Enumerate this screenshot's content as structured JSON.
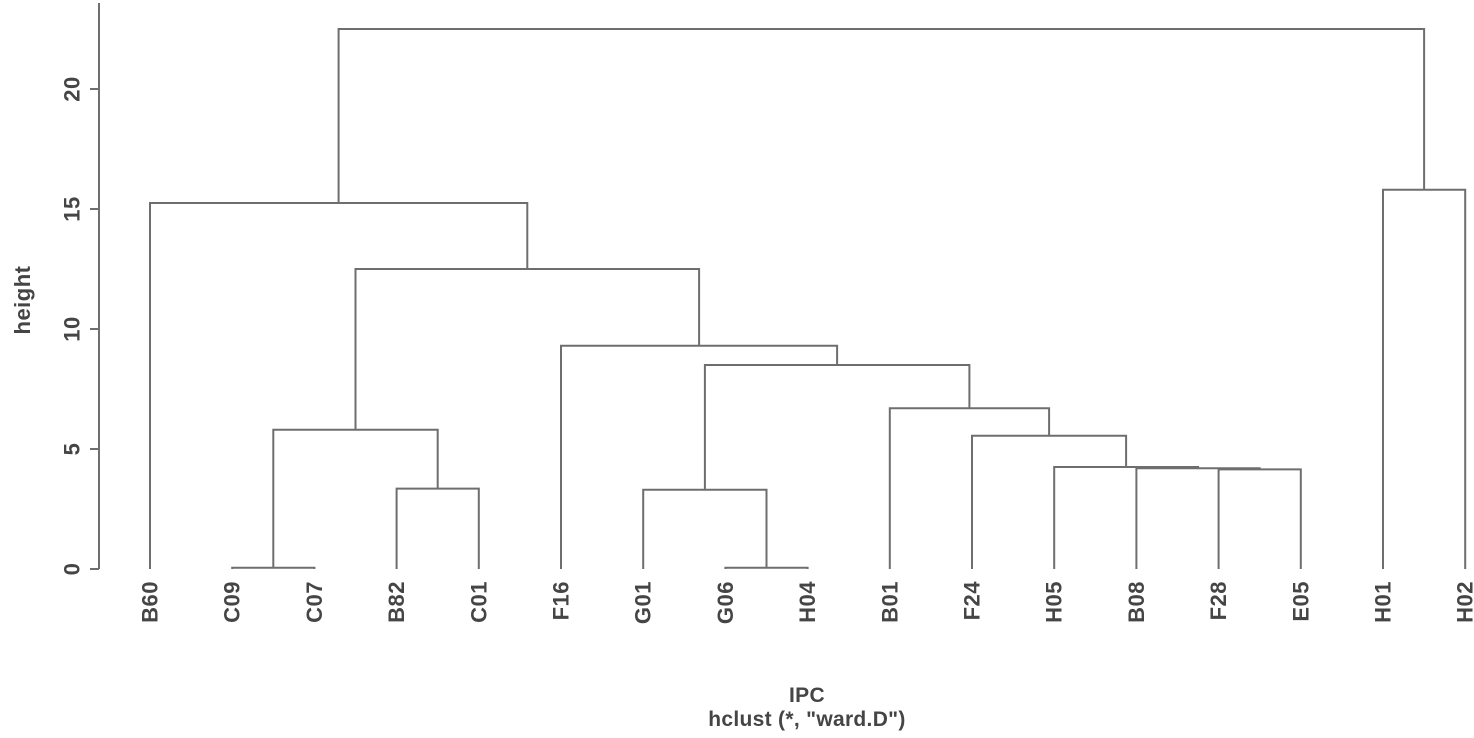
{
  "figure": {
    "background": "#ffffff",
    "line_color": "#6e6e6e",
    "text_color": "#454545"
  },
  "chart_data": {
    "type": "dendrogram",
    "title": "",
    "xlabel": "IPC",
    "sub": "hclust (*, \"ward.D\")",
    "ylabel": "height",
    "y_ticks": [
      0,
      5,
      10,
      15,
      20
    ],
    "ylim": [
      0,
      22.5
    ],
    "grid": false,
    "leaf_order": [
      "B60",
      "C09",
      "C07",
      "B82",
      "C01",
      "F16",
      "G01",
      "G06",
      "H04",
      "B01",
      "F24",
      "H05",
      "B08",
      "F28",
      "E05",
      "H01",
      "H02"
    ],
    "tree": {
      "height": 22.5,
      "children": [
        {
          "height": 15.25,
          "children": [
            {
              "leaf": "B60"
            },
            {
              "height": 12.5,
              "children": [
                {
                  "height": 5.8,
                  "children": [
                    {
                      "height": 0.05,
                      "children": [
                        {
                          "leaf": "C09"
                        },
                        {
                          "leaf": "C07"
                        }
                      ]
                    },
                    {
                      "height": 3.35,
                      "children": [
                        {
                          "leaf": "B82"
                        },
                        {
                          "leaf": "C01"
                        }
                      ]
                    }
                  ]
                },
                {
                  "height": 9.3,
                  "children": [
                    {
                      "leaf": "F16"
                    },
                    {
                      "height": 8.5,
                      "children": [
                        {
                          "height": 3.3,
                          "children": [
                            {
                              "leaf": "G01"
                            },
                            {
                              "height": 0.05,
                              "children": [
                                {
                                  "leaf": "G06"
                                },
                                {
                                  "leaf": "H04"
                                }
                              ]
                            }
                          ]
                        },
                        {
                          "height": 6.7,
                          "children": [
                            {
                              "leaf": "B01"
                            },
                            {
                              "height": 5.55,
                              "children": [
                                {
                                  "leaf": "F24"
                                },
                                {
                                  "height": 4.25,
                                  "children": [
                                    {
                                      "leaf": "H05"
                                    },
                                    {
                                      "height": 4.2,
                                      "children": [
                                        {
                                          "leaf": "B08"
                                        },
                                        {
                                          "height": 4.15,
                                          "children": [
                                            {
                                              "leaf": "F28"
                                            },
                                            {
                                              "leaf": "E05"
                                            }
                                          ]
                                        }
                                      ]
                                    }
                                  ]
                                }
                              ]
                            }
                          ]
                        }
                      ]
                    }
                  ]
                }
              ]
            }
          ]
        },
        {
          "height": 15.8,
          "children": [
            {
              "leaf": "H01"
            },
            {
              "leaf": "H02"
            }
          ]
        }
      ]
    }
  }
}
